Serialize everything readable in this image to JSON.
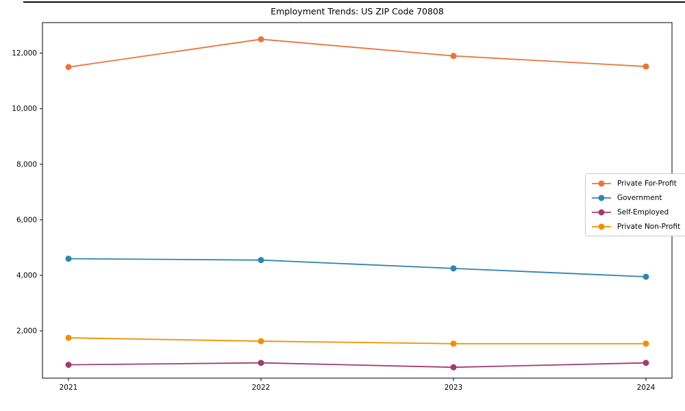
{
  "figure": {
    "background": "#ffffff",
    "frame_color": "#000000",
    "text_color": "#000000",
    "legend_border_color": "#cccccc"
  },
  "chart_data": {
    "type": "line",
    "title": "Employment Trends: US ZIP Code 70808",
    "xlabel": "",
    "ylabel": "",
    "x": [
      "2021",
      "2022",
      "2023",
      "2024"
    ],
    "series": [
      {
        "name": "Private For-Profit",
        "color": "#e8743b",
        "values": [
          11500,
          12500,
          11900,
          11520
        ]
      },
      {
        "name": "Government",
        "color": "#2e86ab",
        "values": [
          4600,
          4550,
          4250,
          3950
        ]
      },
      {
        "name": "Self-Employed",
        "color": "#a23b72",
        "values": [
          780,
          850,
          690,
          850
        ]
      },
      {
        "name": "Private Non-Profit",
        "color": "#f18f01",
        "values": [
          1750,
          1630,
          1540,
          1540
        ]
      }
    ],
    "yticks": [
      2000,
      4000,
      6000,
      8000,
      10000,
      12000
    ],
    "ytick_labels": [
      "2,000",
      "4,000",
      "6,000",
      "8,000",
      "10,000",
      "12,000"
    ],
    "ylim": [
      300,
      13100
    ],
    "grid": false,
    "marker": "circle",
    "legend_position": "center right"
  }
}
